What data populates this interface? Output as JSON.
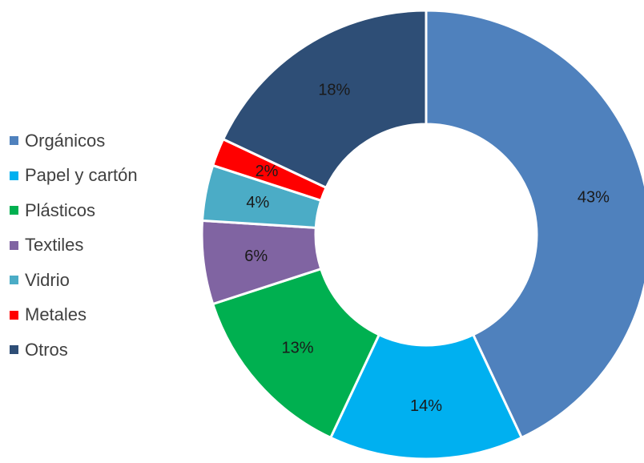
{
  "chart_data": {
    "type": "pie",
    "variant": "donut",
    "categories": [
      "Orgánicos",
      "Papel y cartón",
      "Plásticos",
      "Textiles",
      "Vidrio",
      "Metales",
      "Otros"
    ],
    "values": [
      43,
      14,
      13,
      6,
      4,
      2,
      18
    ],
    "data_labels": [
      "43%",
      "14%",
      "13%",
      "6%",
      "4%",
      "2%",
      "18%"
    ],
    "colors": [
      "#4F81BD",
      "#00B0F0",
      "#00B050",
      "#8064A2",
      "#4BACC6",
      "#FF0000",
      "#2E4E76"
    ],
    "legend_position": "left",
    "title": ""
  }
}
